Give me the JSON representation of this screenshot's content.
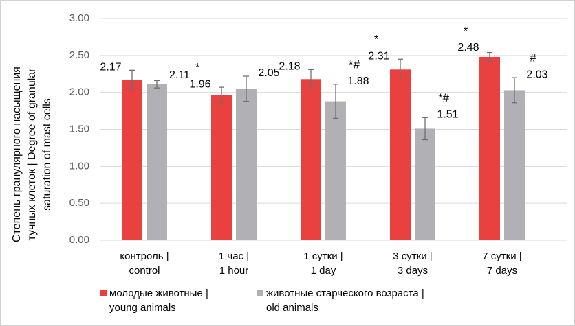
{
  "chart_data": {
    "type": "bar",
    "ylabel": [
      "Степень гранулярного насыщения",
      "тучных клеток | Degree of granular",
      "saturation of mast cells"
    ],
    "categories": [
      [
        "контроль |",
        "control"
      ],
      [
        "1 час |",
        "1 hour"
      ],
      [
        "1 сутки |",
        "1 day"
      ],
      [
        "3 сутки |",
        "3 days"
      ],
      [
        "7 сутки |",
        "7 days"
      ]
    ],
    "series": [
      {
        "name": [
          "молодые животные |",
          "young animals"
        ],
        "color": "#e8413f",
        "values": [
          2.17,
          1.96,
          2.18,
          2.31,
          2.48
        ],
        "errors": [
          0.13,
          0.11,
          0.13,
          0.14,
          0.06
        ],
        "value_labels": [
          "2.17",
          "1.96",
          "2.18",
          "2.31",
          "2.48"
        ]
      },
      {
        "name": [
          "животные старческого возраста |",
          "old animals"
        ],
        "color": "#b1b1b5",
        "values": [
          2.11,
          2.05,
          1.88,
          1.51,
          2.03
        ],
        "errors": [
          0.05,
          0.17,
          0.23,
          0.15,
          0.17
        ],
        "value_labels": [
          "2.11",
          "2.05",
          "1.88",
          "1.51",
          "2.03"
        ]
      }
    ],
    "annotations": [
      {
        "text": "*",
        "series": 0,
        "category": 1
      },
      {
        "text": "*#",
        "series": 1,
        "category": 2
      },
      {
        "text": "*",
        "series": 0,
        "category": 3
      },
      {
        "text": "*#",
        "series": 1,
        "category": 3
      },
      {
        "text": "*",
        "series": 0,
        "category": 4
      },
      {
        "text": "#",
        "series": 1,
        "category": 4
      }
    ],
    "ylim": [
      0,
      3
    ],
    "yticks": [
      {
        "value": 0,
        "label": "0.00"
      },
      {
        "value": 0.5,
        "label": "0.50"
      },
      {
        "value": 1,
        "label": "1.00"
      },
      {
        "value": 1.5,
        "label": "1.50"
      },
      {
        "value": 2,
        "label": "2.00"
      },
      {
        "value": 2.5,
        "label": "2.50"
      },
      {
        "value": 3,
        "label": "3.00"
      }
    ],
    "grid": true,
    "legend": "bottom"
  }
}
